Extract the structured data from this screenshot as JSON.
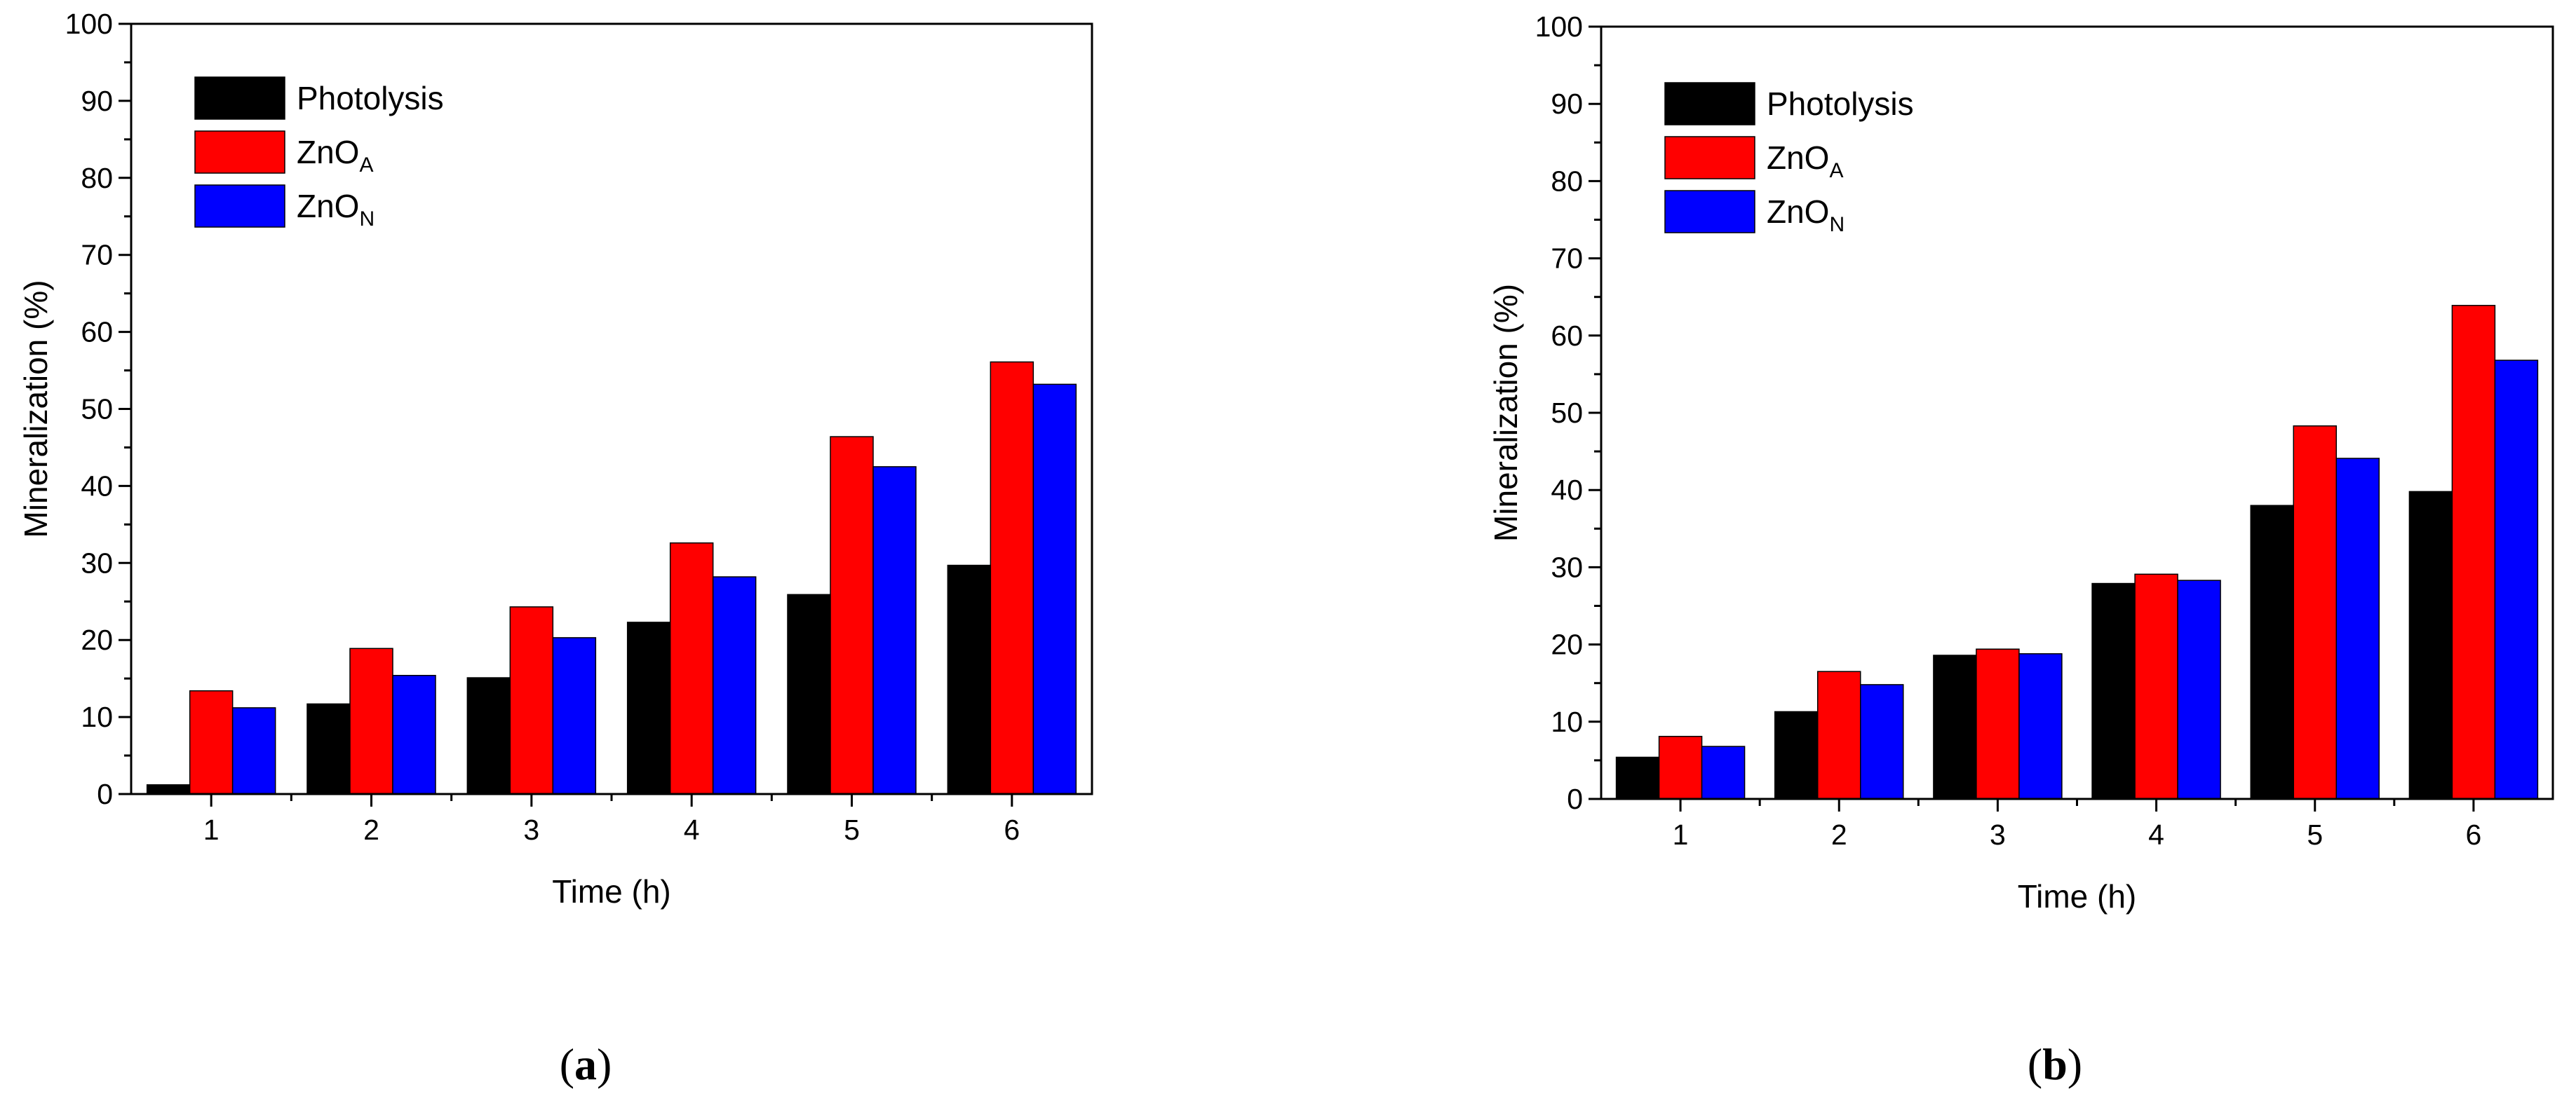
{
  "colors": {
    "photolysis": "#000000",
    "zno_a": "#ff0000",
    "zno_n": "#0000ff"
  },
  "chart_data": [
    {
      "type": "bar",
      "panel_label": "a",
      "title": "",
      "xlabel": "Time (h)",
      "ylabel": "Mineralization (%)",
      "ylim": [
        0,
        100
      ],
      "yticks": [
        0,
        10,
        20,
        30,
        40,
        50,
        60,
        70,
        80,
        90,
        100
      ],
      "categories": [
        "1",
        "2",
        "3",
        "4",
        "5",
        "6"
      ],
      "legend_position": "top-left",
      "series": [
        {
          "name": "Photolysis",
          "base": "Photolysis",
          "sub": "",
          "color": "#000000",
          "values": [
            1.2,
            11.7,
            15.1,
            22.3,
            25.9,
            29.7
          ]
        },
        {
          "name": "ZnOA",
          "base": "ZnO",
          "sub": "A",
          "color": "#ff0000",
          "values": [
            13.4,
            18.9,
            24.3,
            32.6,
            46.4,
            56.1
          ]
        },
        {
          "name": "ZnON",
          "base": "ZnO",
          "sub": "N",
          "color": "#0000ff",
          "values": [
            11.2,
            15.4,
            20.3,
            28.2,
            42.5,
            53.2
          ]
        }
      ]
    },
    {
      "type": "bar",
      "panel_label": "b",
      "title": "",
      "xlabel": "Time (h)",
      "ylabel": "Mineralization (%)",
      "ylim": [
        0,
        100
      ],
      "yticks": [
        0,
        10,
        20,
        30,
        40,
        50,
        60,
        70,
        80,
        90,
        100
      ],
      "categories": [
        "1",
        "2",
        "3",
        "4",
        "5",
        "6"
      ],
      "legend_position": "top-left",
      "series": [
        {
          "name": "Photolysis",
          "base": "Photolysis",
          "sub": "",
          "color": "#000000",
          "values": [
            5.4,
            11.3,
            18.6,
            27.9,
            38.0,
            39.8
          ]
        },
        {
          "name": "ZnOA",
          "base": "ZnO",
          "sub": "A",
          "color": "#ff0000",
          "values": [
            8.1,
            16.5,
            19.4,
            29.1,
            48.3,
            63.9
          ]
        },
        {
          "name": "ZnON",
          "base": "ZnO",
          "sub": "N",
          "color": "#0000ff",
          "values": [
            6.8,
            14.8,
            18.8,
            28.3,
            44.1,
            56.8
          ]
        }
      ]
    }
  ]
}
